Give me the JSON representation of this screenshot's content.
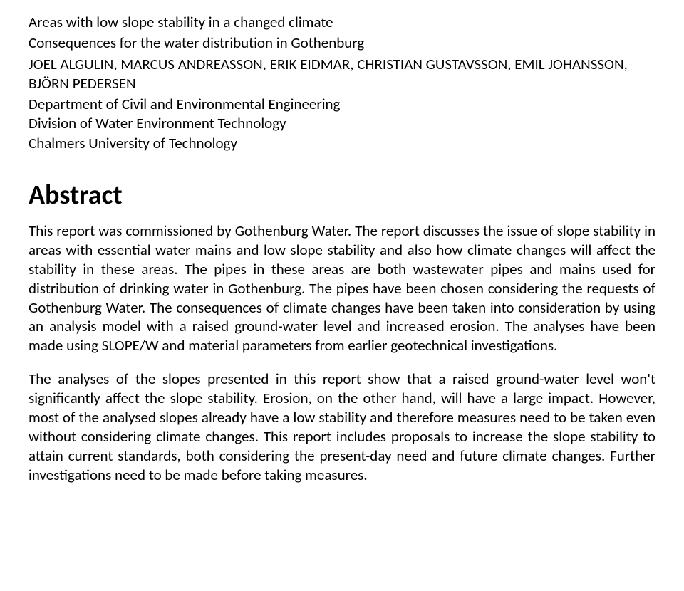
{
  "header": {
    "title": "Areas with low slope stability in a changed climate",
    "subtitle": "Consequences for the water distribution in Gothenburg",
    "authors": "JOEL ALGULIN, MARCUS ANDREASSON, ERIK EIDMAR, CHRISTIAN GUSTAVSSON, EMIL JOHANSSON, BJÖRN PEDERSEN",
    "department": "Department of Civil and Environmental Engineering",
    "division": "Division of Water Environment Technology",
    "university": "Chalmers University of Technology"
  },
  "abstract": {
    "heading": "Abstract",
    "para1": "This report was commissioned by Gothenburg Water. The report discusses the issue of slope stability in areas with essential water mains and low slope stability and also how climate changes will affect the stability in these areas. The pipes in these areas are both wastewater pipes and mains used for distribution of drinking water in Gothenburg. The pipes have been chosen considering the requests of Gothenburg Water. The consequences of climate changes have been taken into consideration by using an analysis model with a raised ground-water level and increased erosion. The analyses have been made using SLOPE/W and material parameters from earlier geotechnical investigations.",
    "para2": "The analyses of the slopes presented in this report show that a raised ground-water level won't significantly affect the slope stability. Erosion, on the other hand, will have a large impact. However, most of the analysed slopes already have a low stability and therefore measures need to be taken even without considering climate changes. This report includes proposals to increase the slope stability to attain current standards, both considering the present-day need and future climate changes. Further investigations need to be made before taking measures."
  }
}
